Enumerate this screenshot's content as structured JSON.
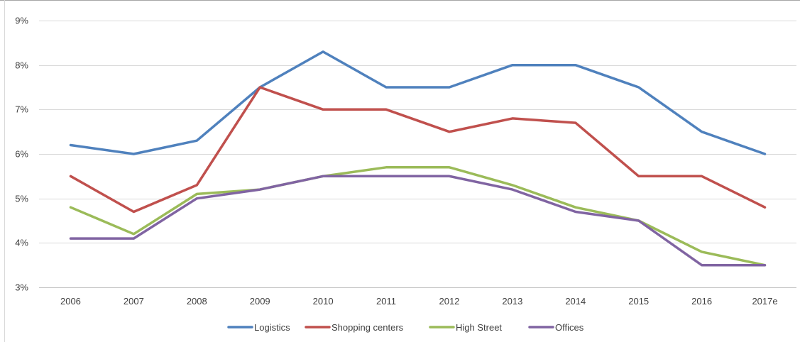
{
  "chart_data": {
    "type": "line",
    "categories": [
      "2006",
      "2007",
      "2008",
      "2009",
      "2010",
      "2011",
      "2012",
      "2013",
      "2014",
      "2015",
      "2016",
      "2017e"
    ],
    "series": [
      {
        "name": "Logistics",
        "color": "#4f81bd",
        "values": [
          6.2,
          6.0,
          6.3,
          7.5,
          8.3,
          7.5,
          7.5,
          8.0,
          8.0,
          7.5,
          6.5,
          6.0
        ]
      },
      {
        "name": "Shopping centers",
        "color": "#c0504d",
        "values": [
          5.5,
          4.7,
          5.3,
          7.5,
          7.0,
          7.0,
          6.5,
          6.8,
          6.7,
          5.5,
          5.5,
          4.8
        ]
      },
      {
        "name": "High Street",
        "color": "#9bbb59",
        "values": [
          4.8,
          4.2,
          5.1,
          5.2,
          5.5,
          5.7,
          5.7,
          5.3,
          4.8,
          4.5,
          3.8,
          3.5
        ]
      },
      {
        "name": "Offices",
        "color": "#8064a2",
        "values": [
          4.1,
          4.1,
          5.0,
          5.2,
          5.5,
          5.5,
          5.5,
          5.2,
          4.7,
          4.5,
          3.5,
          3.5
        ]
      }
    ],
    "ylim": [
      3,
      9
    ],
    "yticks": [
      "3%",
      "4%",
      "5%",
      "6%",
      "7%",
      "8%",
      "9%"
    ],
    "title": "",
    "xlabel": "",
    "ylabel": "",
    "grid": true,
    "legend_position": "bottom"
  }
}
